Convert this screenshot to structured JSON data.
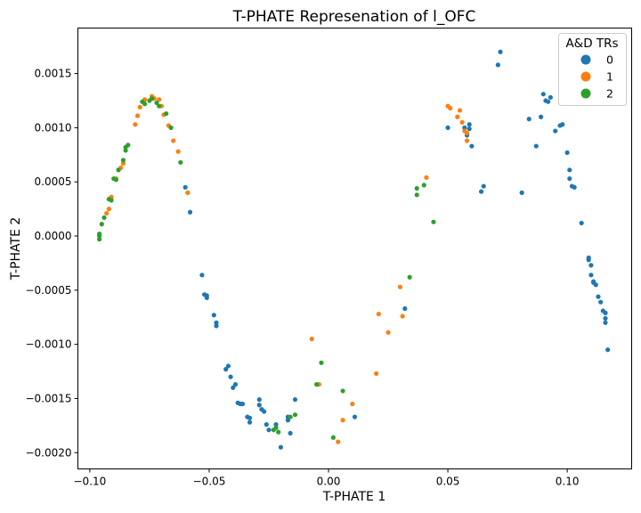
{
  "chart_data": {
    "type": "scatter",
    "title": "T-PHATE Represenation of l_OFC",
    "xlabel": "T-PHATE 1",
    "ylabel": "T-PHATE 2",
    "xlim": [
      -0.105,
      0.127
    ],
    "ylim": [
      -0.00215,
      0.00192
    ],
    "x_ticks": [
      -0.1,
      -0.05,
      0.0,
      0.05,
      0.1
    ],
    "x_tick_labels": [
      "−0.10",
      "−0.05",
      "0.00",
      "0.05",
      "0.10"
    ],
    "y_ticks": [
      -0.002,
      -0.0015,
      -0.001,
      -0.0005,
      0.0,
      0.0005,
      0.001,
      0.0015
    ],
    "y_tick_labels": [
      "−0.0020",
      "−0.0015",
      "−0.0010",
      "−0.0005",
      "0.0000",
      "0.0005",
      "0.0010",
      "0.0015"
    ],
    "grid": false,
    "legend": {
      "title": "A&D TRs",
      "placement": "top-right"
    },
    "series": [
      {
        "name": "0",
        "color": "#1f77b4",
        "points": [
          [
            -0.06,
            0.00045
          ],
          [
            -0.058,
            0.00022
          ],
          [
            -0.053,
            -0.00036
          ],
          [
            -0.052,
            -0.00054
          ],
          [
            -0.051,
            -0.00055
          ],
          [
            -0.051,
            -0.00057
          ],
          [
            -0.048,
            -0.00073
          ],
          [
            -0.047,
            -0.0008
          ],
          [
            -0.047,
            -0.00083
          ],
          [
            -0.043,
            -0.00123
          ],
          [
            -0.042,
            -0.0012
          ],
          [
            -0.041,
            -0.0013
          ],
          [
            -0.04,
            -0.0014
          ],
          [
            -0.039,
            -0.00137
          ],
          [
            -0.038,
            -0.00154
          ],
          [
            -0.037,
            -0.00155
          ],
          [
            -0.036,
            -0.00155
          ],
          [
            -0.034,
            -0.00167
          ],
          [
            -0.033,
            -0.00168
          ],
          [
            -0.033,
            -0.00172
          ],
          [
            -0.029,
            -0.00151
          ],
          [
            -0.029,
            -0.00156
          ],
          [
            -0.028,
            -0.0016
          ],
          [
            -0.027,
            -0.00162
          ],
          [
            -0.026,
            -0.00174
          ],
          [
            -0.025,
            -0.00179
          ],
          [
            -0.022,
            -0.00174
          ],
          [
            -0.02,
            -0.00195
          ],
          [
            -0.017,
            -0.00167
          ],
          [
            -0.017,
            -0.0017
          ],
          [
            -0.016,
            -0.00182
          ],
          [
            -0.014,
            -0.00151
          ],
          [
            0.011,
            -0.00167
          ],
          [
            0.032,
            -0.00067
          ],
          [
            0.05,
            0.001
          ],
          [
            0.057,
            0.001
          ],
          [
            0.058,
            0.00093
          ],
          [
            0.059,
            0.00099
          ],
          [
            0.059,
            0.00103
          ],
          [
            0.06,
            0.00083
          ],
          [
            0.064,
            0.00041
          ],
          [
            0.065,
            0.00046
          ],
          [
            0.071,
            0.00158
          ],
          [
            0.072,
            0.0017
          ],
          [
            0.081,
            0.0004
          ],
          [
            0.084,
            0.00108
          ],
          [
            0.087,
            0.00083
          ],
          [
            0.089,
            0.0011
          ],
          [
            0.09,
            0.00131
          ],
          [
            0.091,
            0.00125
          ],
          [
            0.092,
            0.00124
          ],
          [
            0.093,
            0.00128
          ],
          [
            0.095,
            0.00097
          ],
          [
            0.097,
            0.00102
          ],
          [
            0.098,
            0.00103
          ],
          [
            0.1,
            0.00077
          ],
          [
            0.101,
            0.00061
          ],
          [
            0.101,
            0.00053
          ],
          [
            0.102,
            0.00046
          ],
          [
            0.103,
            0.00045
          ],
          [
            0.106,
            0.00012
          ],
          [
            0.109,
            -0.0002
          ],
          [
            0.109,
            -0.00022
          ],
          [
            0.11,
            -0.00027
          ],
          [
            0.11,
            -0.00036
          ],
          [
            0.111,
            -0.00042
          ],
          [
            0.111,
            -0.00043
          ],
          [
            0.112,
            -0.00045
          ],
          [
            0.113,
            -0.00056
          ],
          [
            0.114,
            -0.00061
          ],
          [
            0.115,
            -0.00069
          ],
          [
            0.116,
            -0.00071
          ],
          [
            0.116,
            -0.00076
          ],
          [
            0.116,
            -0.0008
          ],
          [
            0.117,
            -0.00105
          ]
        ]
      },
      {
        "name": "1",
        "color": "#ff7f0e",
        "points": [
          [
            -0.093,
            0.00021
          ],
          [
            -0.092,
            0.00025
          ],
          [
            -0.091,
            0.00036
          ],
          [
            -0.089,
            0.00053
          ],
          [
            -0.088,
            0.00061
          ],
          [
            -0.087,
            0.00063
          ],
          [
            -0.086,
            0.00067
          ],
          [
            -0.081,
            0.00103
          ],
          [
            -0.08,
            0.00111
          ],
          [
            -0.079,
            0.00119
          ],
          [
            -0.077,
            0.00126
          ],
          [
            -0.074,
            0.00129
          ],
          [
            -0.073,
            0.00127
          ],
          [
            -0.071,
            0.00126
          ],
          [
            -0.07,
            0.0012
          ],
          [
            -0.069,
            0.00112
          ],
          [
            -0.067,
            0.00102
          ],
          [
            -0.065,
            0.00088
          ],
          [
            -0.063,
            0.00078
          ],
          [
            -0.059,
            0.0004
          ],
          [
            -0.007,
            -0.00095
          ],
          [
            -0.004,
            -0.00137
          ],
          [
            0.004,
            -0.0019
          ],
          [
            0.006,
            -0.0017
          ],
          [
            0.01,
            -0.00155
          ],
          [
            0.02,
            -0.00127
          ],
          [
            0.021,
            -0.00072
          ],
          [
            0.025,
            -0.00089
          ],
          [
            0.03,
            -0.00047
          ],
          [
            0.031,
            -0.00074
          ],
          [
            0.041,
            0.00054
          ],
          [
            0.05,
            0.0012
          ],
          [
            0.051,
            0.00118
          ],
          [
            0.054,
            0.0011
          ],
          [
            0.055,
            0.00116
          ],
          [
            0.056,
            0.00105
          ],
          [
            0.057,
            0.00097
          ],
          [
            0.058,
            0.00088
          ],
          [
            0.058,
            0.00095
          ]
        ]
      },
      {
        "name": "2",
        "color": "#2ca02c",
        "points": [
          [
            -0.096,
            -3e-05
          ],
          [
            -0.096,
            0.0
          ],
          [
            -0.096,
            2e-05
          ],
          [
            -0.095,
            0.00011
          ],
          [
            -0.094,
            0.00017
          ],
          [
            -0.091,
            0.00033
          ],
          [
            -0.092,
            0.00034
          ],
          [
            -0.09,
            0.00053
          ],
          [
            -0.089,
            0.00052
          ],
          [
            -0.088,
            0.00061
          ],
          [
            -0.086,
            0.0007
          ],
          [
            -0.085,
            0.00079
          ],
          [
            -0.085,
            0.00082
          ],
          [
            -0.084,
            0.00084
          ],
          [
            -0.078,
            0.00124
          ],
          [
            -0.077,
            0.00122
          ],
          [
            -0.075,
            0.00125
          ],
          [
            -0.074,
            0.00127
          ],
          [
            -0.072,
            0.00123
          ],
          [
            -0.071,
            0.0012
          ],
          [
            -0.068,
            0.00113
          ],
          [
            -0.066,
            0.001
          ],
          [
            -0.062,
            0.00068
          ],
          [
            -0.023,
            -0.00179
          ],
          [
            -0.022,
            -0.00177
          ],
          [
            -0.021,
            -0.00181
          ],
          [
            -0.016,
            -0.00167
          ],
          [
            -0.014,
            -0.00165
          ],
          [
            -0.005,
            -0.00137
          ],
          [
            -0.003,
            -0.00117
          ],
          [
            0.002,
            -0.00186
          ],
          [
            0.006,
            -0.00143
          ],
          [
            0.034,
            -0.00038
          ],
          [
            0.037,
            0.00038
          ],
          [
            0.037,
            0.00044
          ],
          [
            0.04,
            0.00047
          ],
          [
            0.044,
            0.00013
          ]
        ]
      }
    ]
  }
}
